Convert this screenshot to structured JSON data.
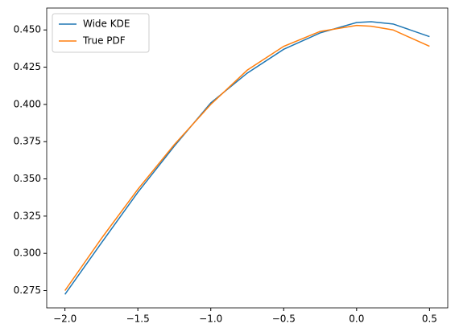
{
  "chart_data": {
    "type": "line",
    "x": [
      -2.0,
      -1.75,
      -1.5,
      -1.25,
      -1.0,
      -0.75,
      -0.5,
      -0.25,
      0.0,
      0.1,
      0.25,
      0.5
    ],
    "series": [
      {
        "name": "Wide KDE",
        "color": "#1f77b4",
        "values": [
          0.2725,
          0.307,
          0.341,
          0.372,
          0.401,
          0.421,
          0.437,
          0.448,
          0.455,
          0.4555,
          0.454,
          0.4455
        ]
      },
      {
        "name": "True PDF",
        "color": "#ff7f0e",
        "values": [
          0.275,
          0.31,
          0.343,
          0.373,
          0.4,
          0.423,
          0.439,
          0.449,
          0.453,
          0.4525,
          0.45,
          0.439
        ]
      }
    ],
    "xlim": [
      -2.125,
      0.625
    ],
    "xticks": [
      {
        "value": -2.0,
        "label": "−2.0"
      },
      {
        "value": -1.5,
        "label": "−1.5"
      },
      {
        "value": -1.0,
        "label": "−1.0"
      },
      {
        "value": -0.5,
        "label": "−0.5"
      },
      {
        "value": 0.0,
        "label": "0.0"
      },
      {
        "value": 0.5,
        "label": "0.5"
      }
    ],
    "ylim": [
      0.2634,
      0.4647
    ],
    "yticks": [
      0.275,
      {
        "value": 0.3,
        "label": "0.300"
      },
      0.325,
      {
        "value": 0.35,
        "label": "0.350"
      },
      0.375,
      {
        "value": 0.4,
        "label": "0.400"
      },
      0.425,
      {
        "value": 0.45,
        "label": "0.450"
      }
    ],
    "legend": "upper left",
    "grid": false
  }
}
